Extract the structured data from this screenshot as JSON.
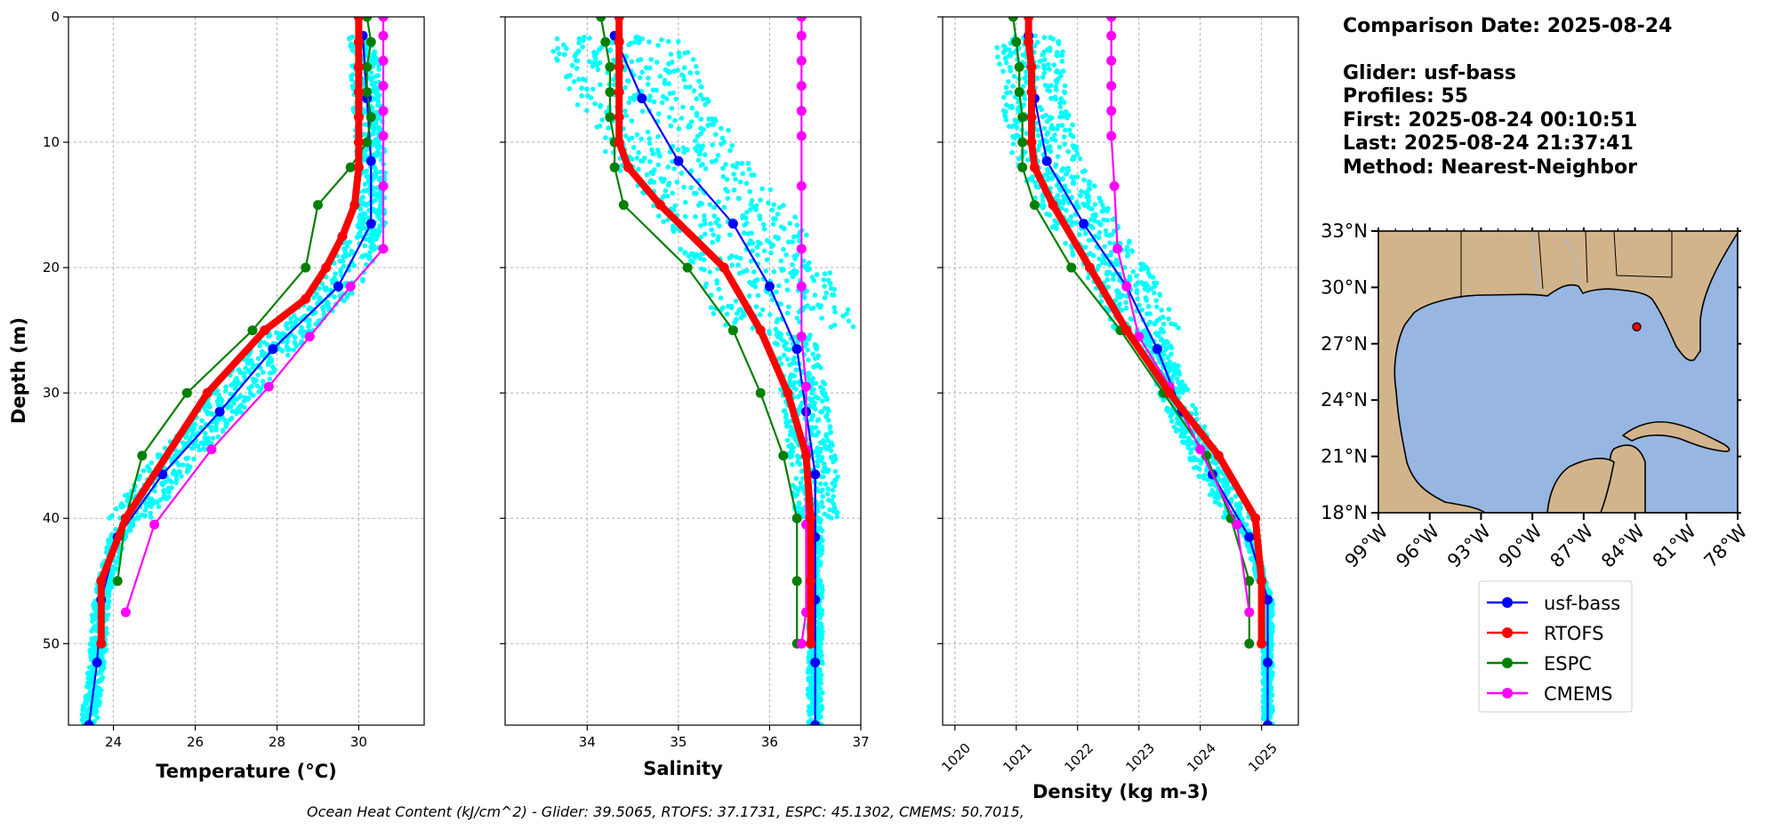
{
  "info": {
    "lines": [
      "Comparison Date: 2025-08-24",
      "",
      "Glider: usf-bass",
      "Profiles: 55",
      "First: 2025-08-24 00:10:51",
      "Last: 2025-08-24 21:37:41",
      "Method: Nearest-Neighbor"
    ]
  },
  "footer": "Ocean Heat Content (kJ/cm^2) - Glider: 39.5065,  RTOFS: 37.1731,  ESPC: 45.1302,  CMEMS: 50.7015,",
  "colors": {
    "glider_scatter": "#00ffff",
    "usf-bass": "#0000ff",
    "RTOFS": "#ff0000",
    "ESPC": "#008000",
    "CMEMS": "#ff00ff",
    "land": "#d2b48c",
    "ocean": "#97b6e1",
    "grid": "#b0b0b0"
  },
  "legend": [
    {
      "name": "usf-bass",
      "color": "#0000ff"
    },
    {
      "name": "RTOFS",
      "color": "#ff0000"
    },
    {
      "name": "ESPC",
      "color": "#008000"
    },
    {
      "name": "CMEMS",
      "color": "#ff00ff"
    }
  ],
  "map": {
    "lon_ticks": [
      "99°W",
      "96°W",
      "93°W",
      "90°W",
      "87°W",
      "84°W",
      "81°W",
      "78°W"
    ],
    "lat_ticks": [
      "33°N",
      "30°N",
      "27°N",
      "24°N",
      "21°N",
      "18°N"
    ],
    "xlim": [
      -99,
      -78
    ],
    "ylim": [
      18,
      33
    ],
    "glider_position": {
      "lon": -83.9,
      "lat": 27.9
    }
  },
  "chart_data": [
    {
      "type": "line",
      "xlabel": "Temperature (°C)",
      "ylabel": "Depth (m)",
      "xlim": [
        22.9,
        31.6
      ],
      "ylim": [
        56.5,
        0
      ],
      "xticks": [
        24,
        26,
        28,
        30
      ],
      "yticks": [
        0,
        10,
        20,
        30,
        40,
        50
      ],
      "grid": true,
      "series": [
        {
          "name": "usf-bass",
          "x": [
            30.1,
            30.2,
            30.3,
            30.3,
            29.5,
            27.9,
            26.6,
            25.2,
            24.1,
            23.7,
            23.6,
            23.4
          ],
          "y": [
            1.5,
            6.5,
            11.5,
            16.5,
            21.5,
            26.5,
            31.5,
            36.5,
            41.5,
            46.5,
            51.5,
            56.5
          ]
        },
        {
          "name": "RTOFS",
          "x": [
            30.0,
            30.0,
            30.0,
            30.0,
            30.0,
            30.0,
            30.0,
            29.9,
            29.6,
            29.2,
            28.7,
            27.7,
            26.3,
            24.3,
            23.7,
            23.7
          ],
          "y": [
            0,
            2,
            4,
            6,
            8,
            10,
            12,
            15,
            17.5,
            20,
            22.5,
            25,
            30,
            40,
            45,
            50
          ]
        },
        {
          "name": "ESPC",
          "x": [
            30.2,
            30.3,
            30.2,
            30.2,
            30.3,
            30.2,
            29.8,
            29.0,
            28.7,
            27.4,
            25.8,
            24.7,
            24.3,
            24.1
          ],
          "y": [
            0,
            2,
            4,
            6,
            8,
            10,
            12,
            15,
            20,
            25,
            30,
            35,
            40,
            45
          ]
        },
        {
          "name": "CMEMS",
          "x": [
            30.6,
            30.6,
            30.6,
            30.6,
            30.6,
            30.6,
            30.6,
            30.6,
            29.8,
            28.8,
            27.8,
            26.4,
            25.0,
            24.3
          ],
          "y": [
            0,
            1.5,
            3.5,
            5.5,
            7.5,
            9.5,
            13.5,
            18.5,
            21.5,
            25.5,
            29.5,
            34.5,
            40.5,
            47.5
          ]
        }
      ]
    },
    {
      "type": "line",
      "xlabel": "Salinity",
      "ylabel": "",
      "xlim": [
        33.1,
        37.0
      ],
      "ylim": [
        56.5,
        0
      ],
      "xticks": [
        34,
        35,
        36,
        37
      ],
      "yticks": [
        0,
        10,
        20,
        30,
        40,
        50
      ],
      "grid": true,
      "series": [
        {
          "name": "usf-bass",
          "x": [
            34.3,
            34.6,
            35.0,
            35.6,
            36.0,
            36.3,
            36.4,
            36.5,
            36.5,
            36.5,
            36.5,
            36.5
          ],
          "y": [
            1.5,
            6.5,
            11.5,
            16.5,
            21.5,
            26.5,
            31.5,
            36.5,
            41.5,
            46.5,
            51.5,
            56.5
          ]
        },
        {
          "name": "RTOFS",
          "x": [
            34.35,
            34.35,
            34.35,
            34.35,
            34.35,
            34.35,
            34.45,
            34.8,
            35.5,
            35.9,
            36.2,
            36.4,
            36.45,
            36.45,
            36.45
          ],
          "y": [
            0,
            2,
            4,
            6,
            8,
            10,
            12,
            15,
            20,
            25,
            30,
            35,
            40,
            45,
            50
          ]
        },
        {
          "name": "ESPC",
          "x": [
            34.15,
            34.2,
            34.25,
            34.25,
            34.25,
            34.3,
            34.3,
            34.4,
            35.1,
            35.6,
            35.9,
            36.15,
            36.3,
            36.3,
            36.3
          ],
          "y": [
            0,
            2,
            4,
            6,
            8,
            10,
            12,
            15,
            20,
            25,
            30,
            35,
            40,
            45,
            50
          ]
        },
        {
          "name": "CMEMS",
          "x": [
            36.35,
            36.35,
            36.35,
            36.35,
            36.35,
            36.35,
            36.35,
            36.35,
            36.35,
            36.35,
            36.4,
            36.4,
            36.4,
            36.4,
            36.35
          ],
          "y": [
            0,
            1.5,
            3.5,
            5.5,
            7.5,
            9.5,
            13.5,
            18.5,
            21.5,
            25.5,
            29.5,
            34.5,
            40.5,
            47.5,
            50
          ]
        }
      ]
    },
    {
      "type": "line",
      "xlabel": "Density (kg m-3)",
      "ylabel": "",
      "xlim": [
        1019.8,
        1025.6
      ],
      "ylim": [
        56.5,
        0
      ],
      "xticks": [
        1020,
        1021,
        1022,
        1023,
        1024,
        1025
      ],
      "yticks": [
        0,
        10,
        20,
        30,
        40,
        50
      ],
      "grid": true,
      "series": [
        {
          "name": "usf-bass",
          "x": [
            1021.2,
            1021.3,
            1021.5,
            1022.1,
            1022.8,
            1023.3,
            1023.7,
            1024.2,
            1024.8,
            1025.1,
            1025.1,
            1025.1
          ],
          "y": [
            1.5,
            6.5,
            11.5,
            16.5,
            21.5,
            26.5,
            31.5,
            36.5,
            41.5,
            46.5,
            51.5,
            56.5
          ]
        },
        {
          "name": "RTOFS",
          "x": [
            1021.2,
            1021.2,
            1021.25,
            1021.25,
            1021.25,
            1021.25,
            1021.3,
            1021.6,
            1022.2,
            1022.8,
            1023.5,
            1024.3,
            1024.9,
            1025.0,
            1025.0
          ],
          "y": [
            0,
            2,
            4,
            6,
            8,
            10,
            12,
            15,
            20,
            25,
            30,
            35,
            40,
            45,
            50
          ]
        },
        {
          "name": "ESPC",
          "x": [
            1020.95,
            1021.0,
            1021.05,
            1021.05,
            1021.1,
            1021.1,
            1021.1,
            1021.3,
            1021.9,
            1022.7,
            1023.4,
            1024.1,
            1024.5,
            1024.8,
            1024.8
          ],
          "y": [
            0,
            2,
            4,
            6,
            8,
            10,
            12,
            15,
            20,
            25,
            30,
            35,
            40,
            45,
            50
          ]
        },
        {
          "name": "CMEMS",
          "x": [
            1022.55,
            1022.55,
            1022.55,
            1022.55,
            1022.55,
            1022.55,
            1022.6,
            1022.65,
            1022.8,
            1023.0,
            1023.5,
            1024.0,
            1024.6,
            1024.8
          ],
          "y": [
            0,
            1.5,
            3.5,
            5.5,
            7.5,
            9.5,
            13.5,
            18.5,
            21.5,
            25.5,
            29.5,
            34.5,
            40.5,
            47.5
          ]
        }
      ]
    }
  ]
}
